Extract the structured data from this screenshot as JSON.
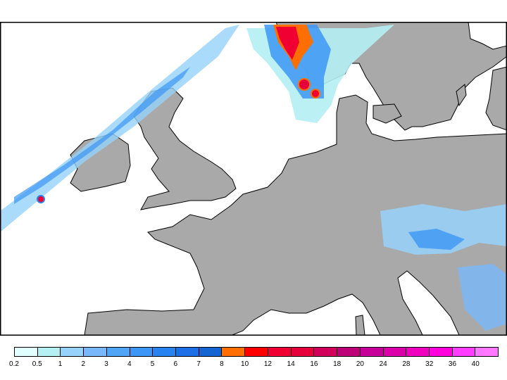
{
  "legend": {
    "labels": [
      "0.2",
      "0.5",
      "1",
      "2",
      "3",
      "4",
      "5",
      "6",
      "7",
      "8",
      "10",
      "12",
      "14",
      "16",
      "18",
      "20",
      "24",
      "28",
      "32",
      "36",
      "40"
    ],
    "colors": [
      "#e0ffff",
      "#b4f0f4",
      "#96d2fa",
      "#78b8fa",
      "#50a5f5",
      "#3c96f5",
      "#2882f0",
      "#1e6ee6",
      "#1464d2",
      "#ff6e00",
      "#ff0000",
      "#f00032",
      "#e6003c",
      "#d2005a",
      "#be0078",
      "#c8009a",
      "#dc00aa",
      "#f000be",
      "#ff00dc",
      "#ff3cff",
      "#ff78ff"
    ]
  },
  "map": {
    "land_color": "#a9a9a9",
    "sea_color": "#ffffff"
  }
}
